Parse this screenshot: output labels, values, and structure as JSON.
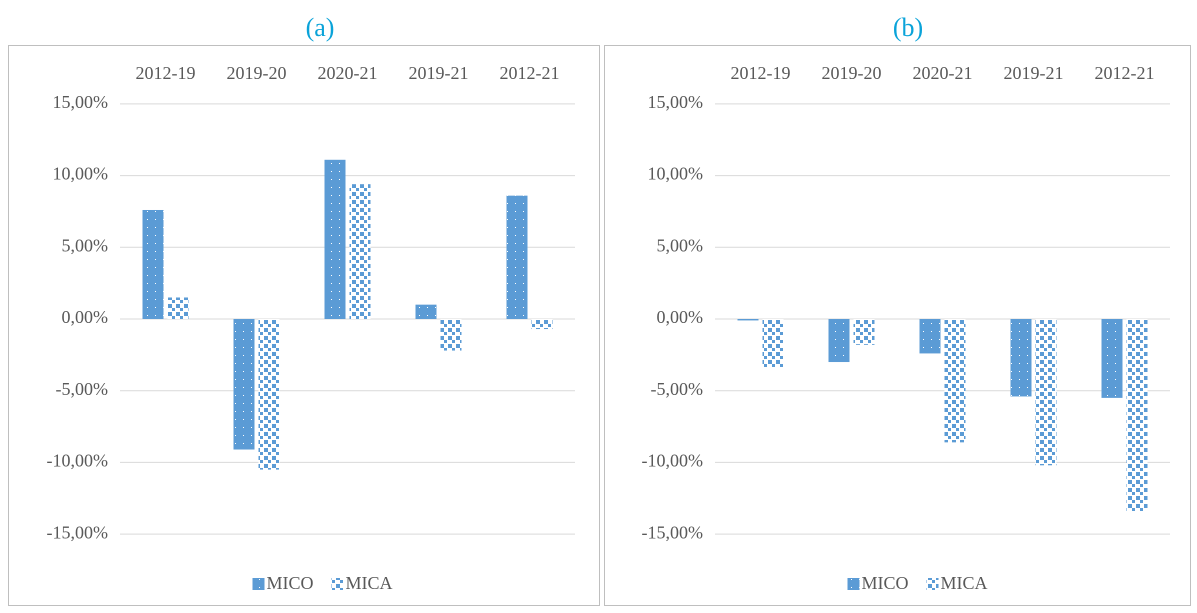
{
  "chart_data": [
    {
      "type": "bar",
      "title": "(a)",
      "categories": [
        "2012-19",
        "2019-20",
        "2020-21",
        "2019-21",
        "2012-21"
      ],
      "series": [
        {
          "name": "MICO",
          "color": "#5b9bd5",
          "pattern": "dots",
          "values": [
            7.6,
            -9.1,
            11.1,
            1.0,
            8.6
          ]
        },
        {
          "name": "MICA",
          "color": "#5b9bd5",
          "pattern": "checker",
          "values": [
            1.5,
            -10.5,
            9.4,
            -2.2,
            -0.7
          ]
        }
      ],
      "ylim": [
        -17.5,
        17.5
      ],
      "yticks": [
        {
          "value": 15,
          "label": "15,00%"
        },
        {
          "value": 10,
          "label": "10,00%"
        },
        {
          "value": 5,
          "label": "5,00%"
        },
        {
          "value": 0,
          "label": "0,00%"
        },
        {
          "value": -5,
          "label": "-5,00%"
        },
        {
          "value": -10,
          "label": "-10,00%"
        },
        {
          "value": -15,
          "label": "-15,00%"
        }
      ],
      "grid": true,
      "legend": "bottom"
    },
    {
      "type": "bar",
      "title": "(b)",
      "categories": [
        "2012-19",
        "2019-20",
        "2020-21",
        "2019-21",
        "2012-21"
      ],
      "series": [
        {
          "name": "MICO",
          "color": "#5b9bd5",
          "pattern": "dots",
          "values": [
            -0.1,
            -3.0,
            -2.4,
            -5.4,
            -5.5
          ]
        },
        {
          "name": "MICA",
          "color": "#5b9bd5",
          "pattern": "checker",
          "values": [
            -3.4,
            -1.8,
            -8.6,
            -10.2,
            -13.4
          ]
        }
      ],
      "ylim": [
        -17.5,
        17.5
      ],
      "yticks": [
        {
          "value": 15,
          "label": "15,00%"
        },
        {
          "value": 10,
          "label": "10,00%"
        },
        {
          "value": 5,
          "label": "5,00%"
        },
        {
          "value": 0,
          "label": "0,00%"
        },
        {
          "value": -5,
          "label": "-5,00%"
        },
        {
          "value": -10,
          "label": "-10,00%"
        },
        {
          "value": -15,
          "label": "-15,00%"
        }
      ],
      "grid": true,
      "legend": "bottom"
    }
  ]
}
